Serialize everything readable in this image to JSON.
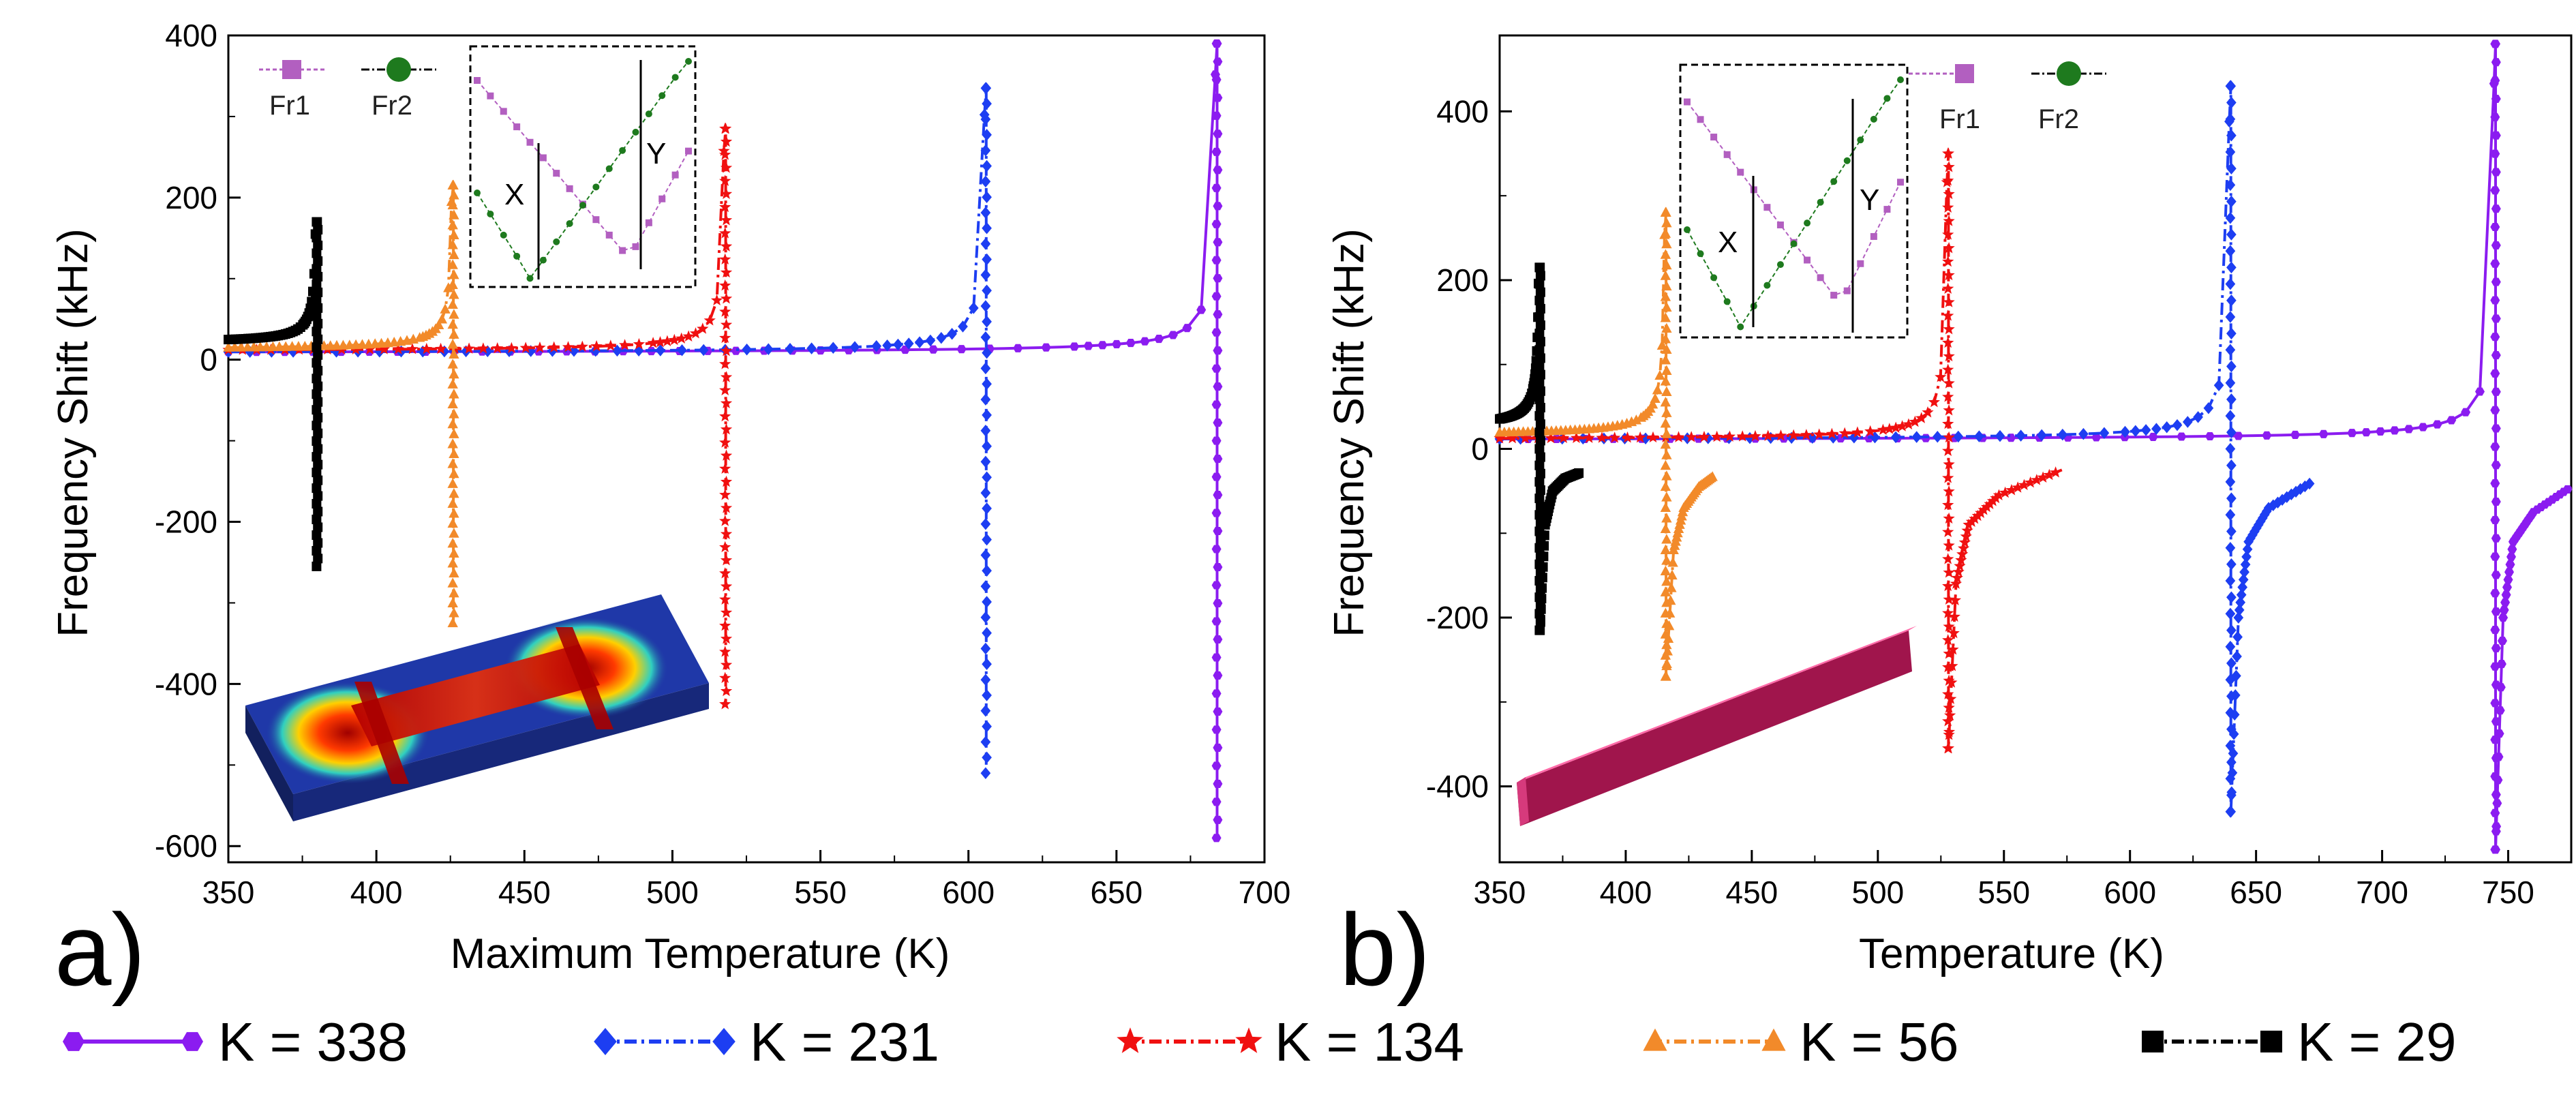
{
  "figure": {
    "panel_a_label": "a)",
    "panel_b_label": "b)",
    "inset_legend": {
      "fr1": "Fr1",
      "fr2": "Fr2",
      "x_marker": "X",
      "y_marker": "Y"
    },
    "legend": [
      {
        "label": "K = 338",
        "color": "#8b1cf0",
        "marker": "hexagon",
        "dash": "solid"
      },
      {
        "label": "K = 231",
        "color": "#1d3ef2",
        "marker": "diamond",
        "dash": "dashdot"
      },
      {
        "label": "K = 134",
        "color": "#f01010",
        "marker": "star",
        "dash": "dashdot"
      },
      {
        "label": "K = 56",
        "color": "#f28a2a",
        "marker": "triangle",
        "dash": "dashdot"
      },
      {
        "label": "K = 29",
        "color": "#000000",
        "marker": "square",
        "dash": "dashdot"
      }
    ],
    "inset_colors": {
      "fr1": "#b25fc0",
      "fr2": "#1e7a1e"
    }
  },
  "chart_data": [
    {
      "type": "line",
      "panel": "a",
      "xlabel": "Maximum Temperature (K)",
      "ylabel": "Frequency Shift (kHz)",
      "xlim": [
        350,
        700
      ],
      "ylim": [
        -620,
        400
      ],
      "xticks": [
        350,
        400,
        450,
        500,
        550,
        600,
        650,
        700
      ],
      "yticks": [
        -600,
        -400,
        -200,
        0,
        200,
        400
      ],
      "series": [
        {
          "name": "K = 338",
          "x0": 350,
          "xr": 684,
          "y0": 8,
          "peak": 390,
          "trough": -590,
          "post": []
        },
        {
          "name": "K = 231",
          "x0": 350,
          "xr": 606,
          "y0": 8,
          "peak": 335,
          "trough": -510,
          "post": []
        },
        {
          "name": "K = 134",
          "x0": 350,
          "xr": 518,
          "y0": 10,
          "peak": 285,
          "trough": -425,
          "post": []
        },
        {
          "name": "K = 56",
          "x0": 350,
          "xr": 426,
          "y0": 12,
          "peak": 215,
          "trough": -325,
          "post": []
        },
        {
          "name": "K = 29",
          "x0": 350,
          "xr": 380,
          "y0": 20,
          "peak": 170,
          "trough": -255,
          "post": []
        }
      ]
    },
    {
      "type": "line",
      "panel": "b",
      "xlabel": "Temperature (K)",
      "ylabel": "Frequency Shift (kHz)",
      "xlim": [
        350,
        775
      ],
      "ylim": [
        -490,
        490
      ],
      "xticks": [
        350,
        400,
        450,
        500,
        550,
        600,
        650,
        700,
        750
      ],
      "yticks": [
        -400,
        -200,
        0,
        200,
        400
      ],
      "series": [
        {
          "name": "K = 338",
          "x0": 350,
          "xr": 745,
          "y0": 10,
          "peak": 480,
          "trough": -475,
          "post": [
            [
              745,
              -475
            ],
            [
              748,
              -200
            ],
            [
              752,
              -110
            ],
            [
              760,
              -75
            ],
            [
              775,
              -45
            ]
          ]
        },
        {
          "name": "K = 231",
          "x0": 350,
          "xr": 640,
          "y0": 10,
          "peak": 430,
          "trough": -430,
          "post": [
            [
              640,
              -430
            ],
            [
              643,
              -200
            ],
            [
              647,
              -110
            ],
            [
              655,
              -70
            ],
            [
              673,
              -38
            ]
          ]
        },
        {
          "name": "K = 134",
          "x0": 350,
          "xr": 528,
          "y0": 10,
          "peak": 350,
          "trough": -355,
          "post": [
            [
              528,
              -355
            ],
            [
              531,
              -160
            ],
            [
              536,
              -90
            ],
            [
              548,
              -55
            ],
            [
              573,
              -25
            ]
          ]
        },
        {
          "name": "K = 56",
          "x0": 350,
          "xr": 416,
          "y0": 15,
          "peak": 280,
          "trough": -270,
          "post": [
            [
              416,
              -270
            ],
            [
              419,
              -120
            ],
            [
              423,
              -70
            ],
            [
              429,
              -45
            ],
            [
              435,
              -32
            ]
          ]
        },
        {
          "name": "K = 29",
          "x0": 350,
          "xr": 366,
          "y0": 25,
          "peak": 215,
          "trough": -215,
          "post": [
            [
              366,
              -215
            ],
            [
              368,
              -90
            ],
            [
              371,
              -50
            ],
            [
              376,
              -35
            ],
            [
              382,
              -28
            ]
          ]
        }
      ]
    }
  ]
}
